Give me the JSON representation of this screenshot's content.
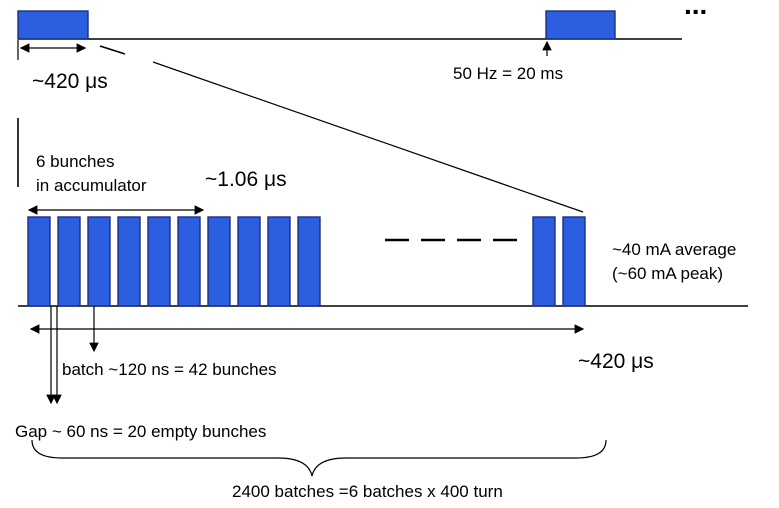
{
  "top": {
    "pulse_width_label": "~420 μs",
    "repetition_label": "50 Hz = 20 ms",
    "continuation": "..."
  },
  "zoom": {
    "bunches_line1": "6 bunches",
    "bunches_line2": "in accumulator",
    "bunch_spacing_label": "~1.06 μs",
    "current_line1": "~40 mA average",
    "current_line2": "(~60 mA peak)",
    "macropulse_label": "~420 μs",
    "batch_label": "batch ~120 ns = 42 bunches",
    "gap_label": "Gap ~ 60 ns = 20 empty bunches",
    "total_label": "2400 batches =6 batches x 400 turn"
  },
  "colors": {
    "pulse_fill": "#2b5fe0",
    "pulse_edge": "#1d2f80"
  }
}
